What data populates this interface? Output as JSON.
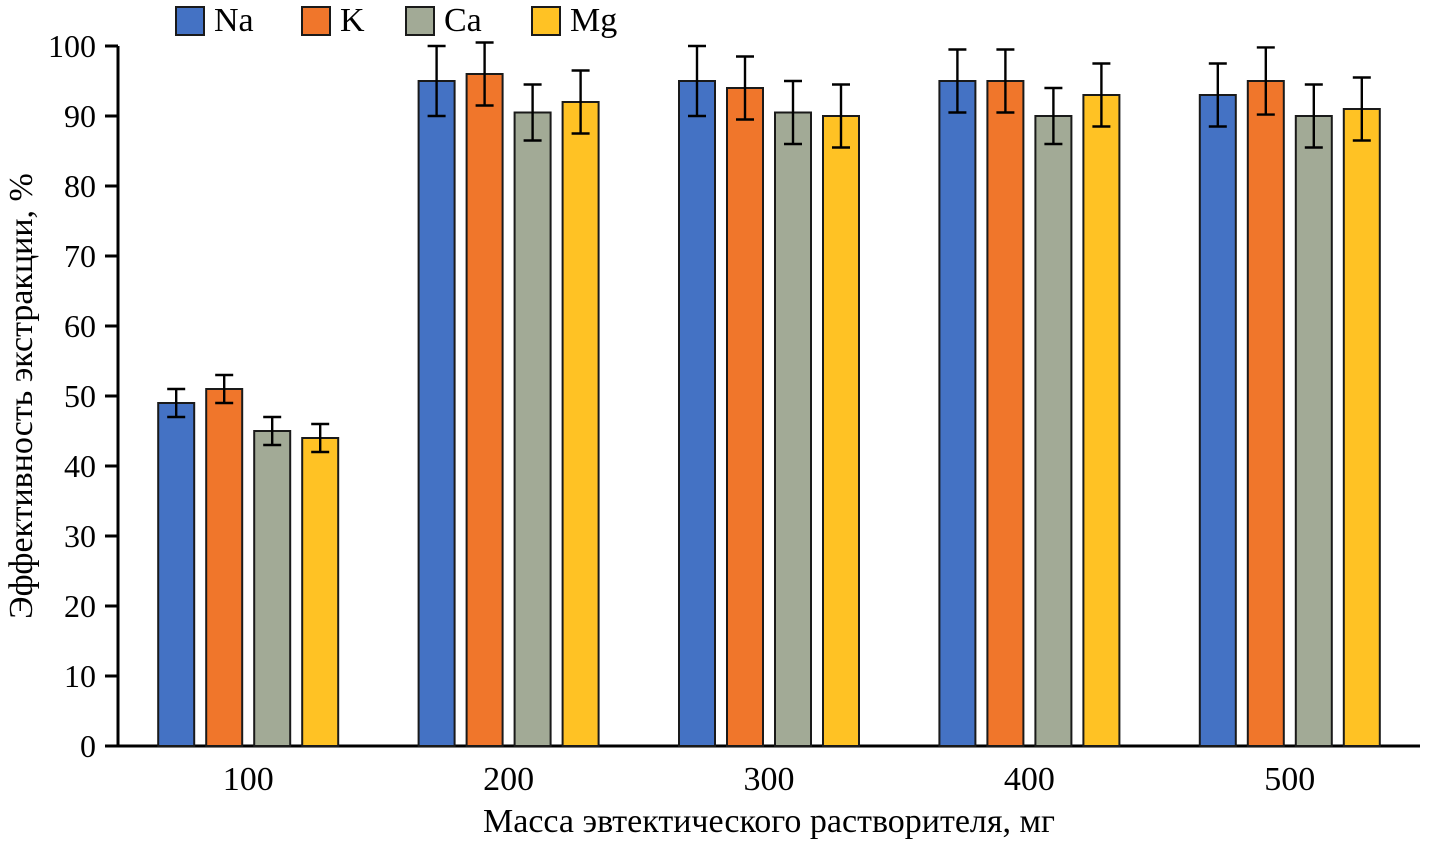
{
  "chart_data": {
    "type": "bar",
    "title": "",
    "xlabel": "Масса эвтектического растворителя, мг",
    "ylabel": "Эффективность экстракции, %",
    "categories": [
      "100",
      "200",
      "300",
      "400",
      "500"
    ],
    "ylim": [
      0,
      100
    ],
    "ytick_step": 10,
    "yticks": [
      0,
      10,
      20,
      30,
      40,
      50,
      60,
      70,
      80,
      90,
      100
    ],
    "grid": false,
    "legend_position": "top-left",
    "bar_outline_color": "#1a1a1a",
    "error_bar_color": "#000000",
    "series": [
      {
        "name": "Na",
        "color": "#4472C4",
        "values": [
          49,
          95,
          95,
          95,
          93
        ],
        "errors": [
          2,
          5,
          5,
          4.5,
          4.5
        ]
      },
      {
        "name": "K",
        "color": "#F0762B",
        "values": [
          51,
          96,
          94,
          95,
          95
        ],
        "errors": [
          2,
          4.5,
          4.5,
          4.5,
          4.8
        ]
      },
      {
        "name": "Ca",
        "color": "#A2AA96",
        "values": [
          45,
          90.5,
          90.5,
          90,
          90
        ],
        "errors": [
          2,
          4,
          4.5,
          4,
          4.5
        ]
      },
      {
        "name": "Mg",
        "color": "#FFC224",
        "values": [
          44,
          92,
          90,
          93,
          91
        ],
        "errors": [
          2,
          4.5,
          4.5,
          4.5,
          4.5
        ]
      }
    ]
  }
}
